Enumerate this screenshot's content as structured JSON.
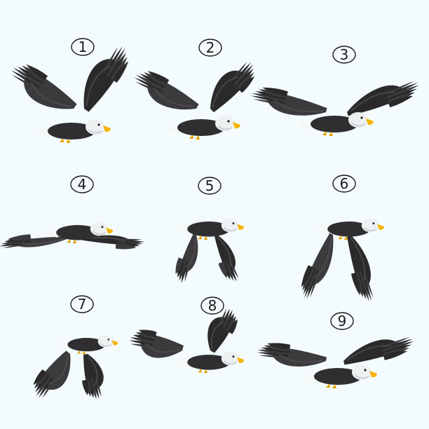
{
  "sheet": {
    "background": "#f3fbfd",
    "colors": {
      "wing_dark": "#2b2a2b",
      "wing_mid": "#3b3a3c",
      "wing_light": "#56575a",
      "body": "#2f2e30",
      "head": "#eef1f2",
      "head_shade": "#c9cfd3",
      "beak": "#f4b400",
      "talon": "#e3a100",
      "tail": "#f6f7f7",
      "label_ink": "#1a1a1a"
    },
    "frames": [
      {
        "label": "1",
        "pose": "wings-up-high"
      },
      {
        "label": "2",
        "pose": "wings-up"
      },
      {
        "label": "3",
        "pose": "wings-level-raised"
      },
      {
        "label": "4",
        "pose": "wings-flat"
      },
      {
        "label": "5",
        "pose": "wings-down"
      },
      {
        "label": "6",
        "pose": "wings-down-deep"
      },
      {
        "label": "7",
        "pose": "wings-forward"
      },
      {
        "label": "8",
        "pose": "wings-forward-up"
      },
      {
        "label": "9",
        "pose": "wings-spread-glide"
      }
    ]
  }
}
